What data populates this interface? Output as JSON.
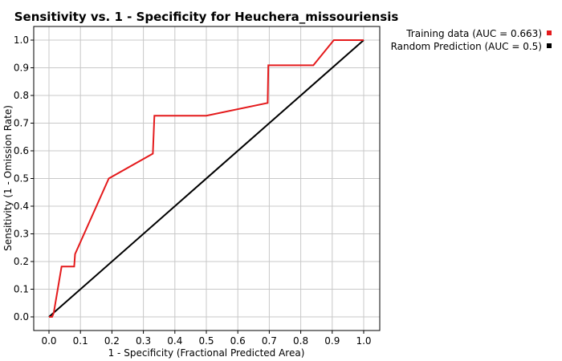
{
  "chart_data": {
    "type": "line",
    "title": "Sensitivity vs. 1 - Specificity for Heuchera_missouriensis",
    "xlabel": "1 - Specificity  (Fractional Predicted Area)",
    "ylabel": "Sensitivity  (1 - Omission Rate)",
    "xlim": [
      0,
      1
    ],
    "ylim": [
      0,
      1
    ],
    "xticks": [
      "0.0",
      "0.1",
      "0.2",
      "0.3",
      "0.4",
      "0.5",
      "0.6",
      "0.7",
      "0.8",
      "0.9",
      "1.0"
    ],
    "yticks": [
      "0.0",
      "0.1",
      "0.2",
      "0.3",
      "0.4",
      "0.5",
      "0.6",
      "0.7",
      "0.8",
      "0.9",
      "1.0"
    ],
    "grid": true,
    "legend_position": "top-right, outside plot",
    "series": [
      {
        "name": "Training data (AUC = 0.663)",
        "color": "#e41a1c",
        "x": [
          0.0,
          0.01,
          0.015,
          0.04,
          0.08,
          0.083,
          0.19,
          0.33,
          0.335,
          0.5,
          0.695,
          0.697,
          0.84,
          0.905,
          1.0
        ],
        "y": [
          0.0,
          0.0,
          0.014,
          0.182,
          0.182,
          0.227,
          0.5,
          0.59,
          0.727,
          0.727,
          0.773,
          0.909,
          0.909,
          1.0,
          1.0
        ]
      },
      {
        "name": "Random Prediction (AUC = 0.5)",
        "color": "#000000",
        "x": [
          0.0,
          1.0
        ],
        "y": [
          0.0,
          1.0
        ]
      }
    ]
  }
}
